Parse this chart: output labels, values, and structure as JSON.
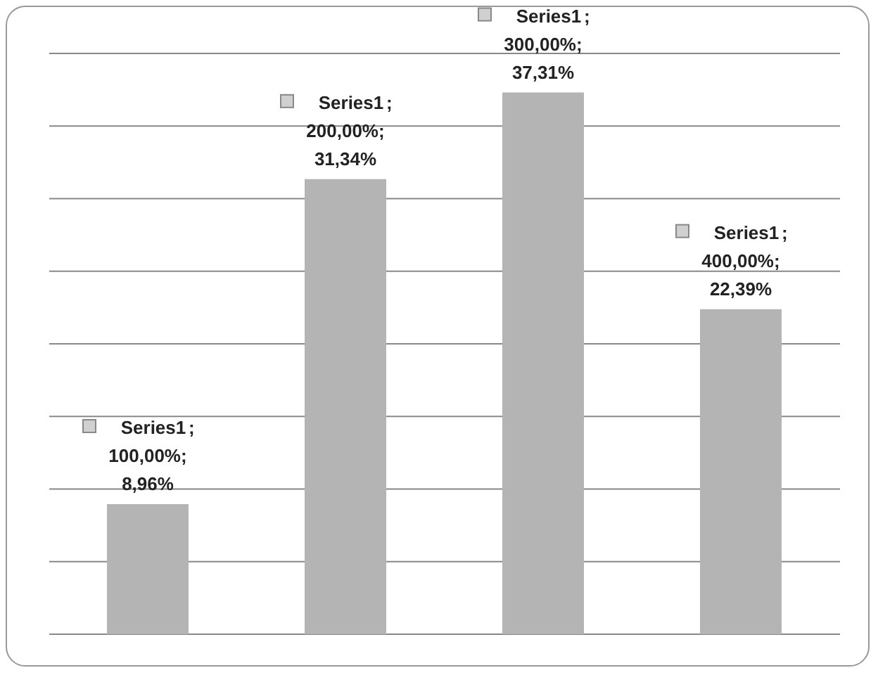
{
  "chart_data": {
    "type": "bar",
    "categories": [
      null,
      null,
      null,
      null
    ],
    "series": [
      {
        "name": "Series1",
        "color": "#b4b4b4",
        "values": [
          8.96,
          31.34,
          37.31,
          22.39
        ],
        "value_labels": [
          ";\n100,00%;\n8,96%",
          ";\n200,00%;\n31,34%",
          ";\n300,00%;\n37,31%",
          ";\n400,00%;\n22,39%"
        ]
      }
    ],
    "ylim": [
      0,
      40
    ],
    "yticks": [
      {
        "value": 0,
        "label": null
      },
      {
        "value": 5,
        "label": null
      },
      {
        "value": 10,
        "label": null
      },
      {
        "value": 15,
        "label": null
      },
      {
        "value": 20,
        "label": null
      },
      {
        "value": 25,
        "label": null
      },
      {
        "value": 30,
        "label": null
      },
      {
        "value": 35,
        "label": null
      },
      {
        "value": 40,
        "label": null
      }
    ],
    "grid": "y",
    "tick_labels": false,
    "legend": false
  }
}
